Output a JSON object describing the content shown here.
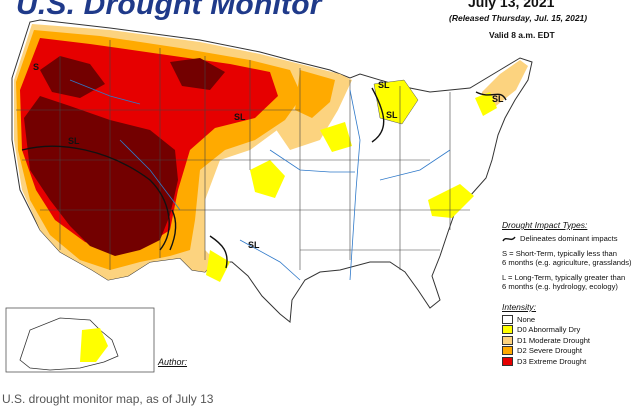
{
  "header": {
    "title": "U.S. Drought Monitor",
    "date": "July 13, 2021",
    "released": "(Released Thursday, Jul. 15, 2021)",
    "valid": "Valid 8 a.m. EDT"
  },
  "impact_types": {
    "title": "Drought Impact Types:",
    "delineates": "Delineates dominant impacts",
    "short_term": "S = Short-Term, typically less than",
    "short_term_2": "6 months (e.g. agriculture, grasslands)",
    "long_term": "L = Long-Term, typically greater than",
    "long_term_2": "6 months (e.g. hydrology, ecology)"
  },
  "intensity": {
    "title": "Intensity:",
    "levels": [
      {
        "label": "None",
        "color": "#ffffff"
      },
      {
        "label": "D0 Abnormally Dry",
        "color": "#ffff00"
      },
      {
        "label": "D1 Moderate Drought",
        "color": "#fcd37f"
      },
      {
        "label": "D2 Severe Drought",
        "color": "#ffaa00"
      },
      {
        "label": "D3 Extreme Drought",
        "color": "#e60000"
      }
    ],
    "d4_color": "#730000"
  },
  "map_labels": {
    "s": "S",
    "sl": "SL"
  },
  "author_label": "Author:",
  "caption": "U.S. drought monitor map, as of July 13"
}
